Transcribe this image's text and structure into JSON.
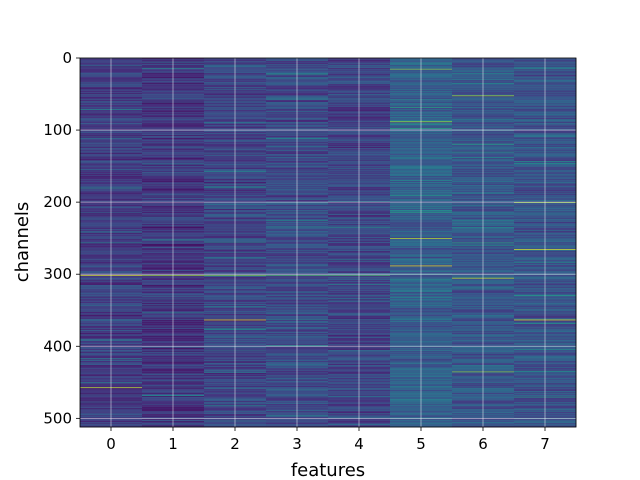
{
  "chart_data": {
    "type": "heatmap",
    "title": "",
    "xlabel": "features",
    "ylabel": "channels",
    "x_ticks": [
      "0",
      "1",
      "2",
      "3",
      "4",
      "5",
      "6",
      "7"
    ],
    "y_ticks": [
      "0",
      "100",
      "200",
      "300",
      "400",
      "500"
    ],
    "xlim": [
      -0.5,
      7.5
    ],
    "ylim": [
      512,
      0
    ],
    "n_features": 8,
    "n_channels": 512,
    "grid": true,
    "colormap": "viridis",
    "colormap_stops": [
      "#440154",
      "#472d7b",
      "#3b528b",
      "#2c728e",
      "#21918c",
      "#28ae80",
      "#5ec962",
      "#addc30",
      "#fde725"
    ],
    "column_mean_level": [
      0.18,
      0.16,
      0.2,
      0.22,
      0.2,
      0.3,
      0.27,
      0.26
    ],
    "highlights": [
      {
        "feature": 0,
        "channel": 301,
        "level": 0.95
      },
      {
        "feature": 0,
        "channel": 457,
        "level": 0.9
      },
      {
        "feature": 1,
        "channel": 301,
        "level": 0.85
      },
      {
        "feature": 2,
        "channel": 301,
        "level": 0.8
      },
      {
        "feature": 2,
        "channel": 363,
        "level": 0.95
      },
      {
        "feature": 3,
        "channel": 301,
        "level": 0.7
      },
      {
        "feature": 4,
        "channel": 301,
        "level": 0.7
      },
      {
        "feature": 5,
        "channel": 15,
        "level": 0.8
      },
      {
        "feature": 5,
        "channel": 88,
        "level": 0.85
      },
      {
        "feature": 5,
        "channel": 250,
        "level": 0.9
      },
      {
        "feature": 5,
        "channel": 288,
        "level": 0.95
      },
      {
        "feature": 6,
        "channel": 52,
        "level": 0.85
      },
      {
        "feature": 6,
        "channel": 305,
        "level": 0.9
      },
      {
        "feature": 6,
        "channel": 435,
        "level": 0.8
      },
      {
        "feature": 7,
        "channel": 200,
        "level": 0.85
      },
      {
        "feature": 7,
        "channel": 265,
        "level": 0.95
      },
      {
        "feature": 7,
        "channel": 363,
        "level": 0.95
      }
    ]
  }
}
